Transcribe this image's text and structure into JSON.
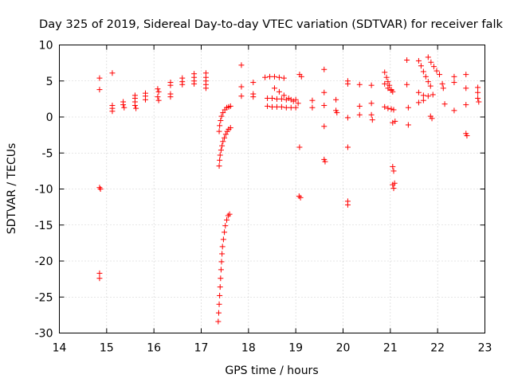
{
  "chart_data": {
    "type": "scatter",
    "title": "Day 325 of 2019, Sidereal Day-to-day VTEC variation (SDTVAR) for receiver falk",
    "xlabel": "GPS time / hours",
    "ylabel": "SDTVAR / TECUs",
    "xlim": [
      14,
      23
    ],
    "ylim": [
      -30,
      10
    ],
    "xticks": [
      "14",
      "15",
      "16",
      "17",
      "18",
      "19",
      "20",
      "21",
      "22",
      "23"
    ],
    "yticks": [
      "10",
      "5",
      "0",
      "-5",
      "-10",
      "-15",
      "-20",
      "-25",
      "-30"
    ],
    "grid": true,
    "marker": "+",
    "color": "#ff0000",
    "series": [
      {
        "name": "SDTVAR",
        "points": [
          [
            14.85,
            5.4
          ],
          [
            14.85,
            3.8
          ],
          [
            14.85,
            -9.8
          ],
          [
            14.87,
            -10.0
          ],
          [
            14.85,
            -21.7
          ],
          [
            14.85,
            -22.4
          ],
          [
            15.12,
            6.1
          ],
          [
            15.12,
            1.6
          ],
          [
            15.12,
            1.2
          ],
          [
            15.12,
            0.8
          ],
          [
            15.35,
            2.1
          ],
          [
            15.35,
            1.7
          ],
          [
            15.37,
            1.3
          ],
          [
            15.6,
            3.0
          ],
          [
            15.6,
            2.6
          ],
          [
            15.6,
            2.1
          ],
          [
            15.6,
            1.6
          ],
          [
            15.62,
            1.2
          ],
          [
            15.82,
            3.3
          ],
          [
            15.82,
            2.9
          ],
          [
            15.82,
            2.4
          ],
          [
            16.08,
            3.9
          ],
          [
            16.1,
            3.5
          ],
          [
            16.08,
            2.8
          ],
          [
            16.1,
            2.3
          ],
          [
            16.35,
            4.8
          ],
          [
            16.35,
            4.4
          ],
          [
            16.35,
            3.2
          ],
          [
            16.35,
            2.8
          ],
          [
            16.6,
            5.4
          ],
          [
            16.6,
            4.9
          ],
          [
            16.6,
            4.5
          ],
          [
            16.85,
            6.0
          ],
          [
            16.85,
            5.5
          ],
          [
            16.85,
            5.0
          ],
          [
            16.85,
            4.6
          ],
          [
            17.1,
            6.1
          ],
          [
            17.1,
            5.5
          ],
          [
            17.1,
            5.0
          ],
          [
            17.1,
            4.5
          ],
          [
            17.1,
            4.0
          ],
          [
            17.38,
            -6.8
          ],
          [
            17.39,
            -6.0
          ],
          [
            17.4,
            -5.3
          ],
          [
            17.42,
            -4.6
          ],
          [
            17.44,
            -4.0
          ],
          [
            17.46,
            -3.4
          ],
          [
            17.49,
            -2.9
          ],
          [
            17.52,
            -2.4
          ],
          [
            17.55,
            -2.0
          ],
          [
            17.58,
            -1.7
          ],
          [
            17.62,
            -1.5
          ],
          [
            17.38,
            -2.0
          ],
          [
            17.39,
            -1.2
          ],
          [
            17.41,
            -0.5
          ],
          [
            17.43,
            0.1
          ],
          [
            17.46,
            0.6
          ],
          [
            17.5,
            1.0
          ],
          [
            17.54,
            1.3
          ],
          [
            17.58,
            1.4
          ],
          [
            17.62,
            1.5
          ],
          [
            17.36,
            -28.4
          ],
          [
            17.37,
            -27.2
          ],
          [
            17.38,
            -26.0
          ],
          [
            17.39,
            -24.8
          ],
          [
            17.4,
            -23.6
          ],
          [
            17.41,
            -22.4
          ],
          [
            17.42,
            -21.2
          ],
          [
            17.43,
            -20.1
          ],
          [
            17.44,
            -19.0
          ],
          [
            17.45,
            -18.0
          ],
          [
            17.47,
            -17.0
          ],
          [
            17.49,
            -16.0
          ],
          [
            17.51,
            -15.1
          ],
          [
            17.54,
            -14.3
          ],
          [
            17.57,
            -13.7
          ],
          [
            17.6,
            -13.5
          ],
          [
            17.85,
            7.2
          ],
          [
            17.85,
            4.2
          ],
          [
            17.85,
            2.9
          ],
          [
            18.1,
            4.8
          ],
          [
            18.1,
            3.2
          ],
          [
            18.1,
            2.8
          ],
          [
            18.35,
            5.5
          ],
          [
            18.45,
            5.6
          ],
          [
            18.55,
            5.6
          ],
          [
            18.65,
            5.5
          ],
          [
            18.75,
            5.4
          ],
          [
            18.4,
            2.6
          ],
          [
            18.5,
            2.6
          ],
          [
            18.6,
            2.5
          ],
          [
            18.7,
            2.5
          ],
          [
            18.8,
            2.4
          ],
          [
            18.9,
            2.4
          ],
          [
            19.0,
            2.4
          ],
          [
            18.4,
            1.5
          ],
          [
            18.5,
            1.4
          ],
          [
            18.6,
            1.4
          ],
          [
            18.7,
            1.4
          ],
          [
            18.8,
            1.3
          ],
          [
            18.9,
            1.3
          ],
          [
            19.0,
            1.3
          ],
          [
            18.55,
            4.0
          ],
          [
            18.65,
            3.5
          ],
          [
            18.75,
            3.0
          ],
          [
            18.85,
            2.6
          ],
          [
            18.95,
            2.2
          ],
          [
            19.05,
            1.9
          ],
          [
            19.08,
            5.9
          ],
          [
            19.12,
            5.6
          ],
          [
            19.08,
            -4.2
          ],
          [
            19.1,
            -11.2
          ],
          [
            19.07,
            -11.0
          ],
          [
            19.35,
            2.3
          ],
          [
            19.35,
            1.3
          ],
          [
            19.6,
            6.6
          ],
          [
            19.6,
            3.4
          ],
          [
            19.6,
            1.6
          ],
          [
            19.6,
            -1.3
          ],
          [
            19.6,
            -5.9
          ],
          [
            19.62,
            -6.2
          ],
          [
            19.85,
            2.4
          ],
          [
            19.85,
            0.9
          ],
          [
            19.87,
            0.6
          ],
          [
            20.1,
            5.0
          ],
          [
            20.1,
            4.6
          ],
          [
            20.1,
            -0.1
          ],
          [
            20.1,
            -4.2
          ],
          [
            20.1,
            -11.7
          ],
          [
            20.1,
            -12.2
          ],
          [
            20.35,
            4.5
          ],
          [
            20.35,
            1.5
          ],
          [
            20.35,
            0.3
          ],
          [
            20.6,
            4.4
          ],
          [
            20.6,
            1.9
          ],
          [
            20.6,
            0.3
          ],
          [
            20.62,
            -0.4
          ],
          [
            20.88,
            6.2
          ],
          [
            20.92,
            5.5
          ],
          [
            20.95,
            4.9
          ],
          [
            20.98,
            4.4
          ],
          [
            21.02,
            3.8
          ],
          [
            21.05,
            3.5
          ],
          [
            20.88,
            4.6
          ],
          [
            20.95,
            4.0
          ],
          [
            21.02,
            3.7
          ],
          [
            20.88,
            1.4
          ],
          [
            20.95,
            1.2
          ],
          [
            21.02,
            1.1
          ],
          [
            21.07,
            1.0
          ],
          [
            21.05,
            -0.8
          ],
          [
            21.1,
            -0.6
          ],
          [
            21.05,
            -6.9
          ],
          [
            21.07,
            -7.5
          ],
          [
            21.05,
            -9.4
          ],
          [
            21.07,
            -9.9
          ],
          [
            21.09,
            -9.2
          ],
          [
            21.35,
            7.9
          ],
          [
            21.35,
            4.5
          ],
          [
            21.38,
            1.3
          ],
          [
            21.38,
            -1.1
          ],
          [
            21.6,
            7.8
          ],
          [
            21.65,
            7.1
          ],
          [
            21.7,
            6.3
          ],
          [
            21.75,
            5.6
          ],
          [
            21.8,
            4.9
          ],
          [
            21.85,
            4.3
          ],
          [
            21.6,
            3.4
          ],
          [
            21.7,
            3.0
          ],
          [
            21.8,
            2.9
          ],
          [
            21.9,
            3.1
          ],
          [
            21.6,
            2.0
          ],
          [
            21.7,
            2.3
          ],
          [
            21.8,
            8.3
          ],
          [
            21.86,
            7.6
          ],
          [
            21.92,
            7.0
          ],
          [
            21.98,
            6.4
          ],
          [
            22.04,
            5.9
          ],
          [
            21.85,
            0.1
          ],
          [
            21.88,
            -0.2
          ],
          [
            22.1,
            4.6
          ],
          [
            22.12,
            4.0
          ],
          [
            22.15,
            1.8
          ],
          [
            22.35,
            5.6
          ],
          [
            22.35,
            4.8
          ],
          [
            22.35,
            0.9
          ],
          [
            22.6,
            5.9
          ],
          [
            22.6,
            4.0
          ],
          [
            22.6,
            1.7
          ],
          [
            22.6,
            -2.3
          ],
          [
            22.62,
            -2.6
          ],
          [
            22.85,
            4.1
          ],
          [
            22.85,
            3.4
          ],
          [
            22.85,
            2.6
          ],
          [
            22.87,
            2.1
          ]
        ]
      }
    ]
  }
}
